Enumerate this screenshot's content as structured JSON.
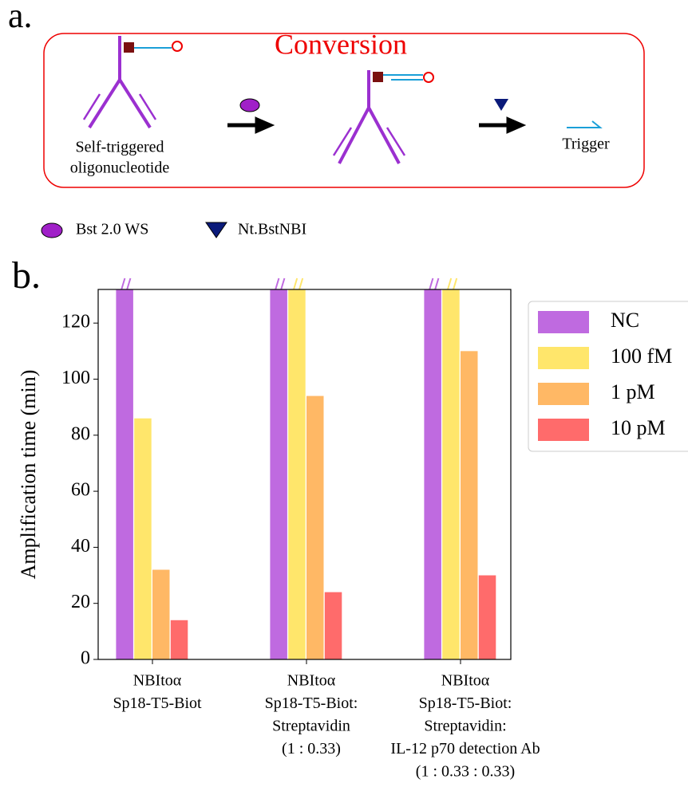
{
  "panels": {
    "a": "a.",
    "b": "b."
  },
  "diagram": {
    "title": "Conversion",
    "start_label": [
      "Self-triggered",
      "oligonucleotide"
    ],
    "end_label": "Trigger",
    "legend": [
      "Bst 2.0 WS",
      "Nt.BstNBI"
    ]
  },
  "chart_data": {
    "type": "bar",
    "categories": [
      [
        "NBItoα",
        "Sp18-T5-Biot"
      ],
      [
        "NBItoα",
        "Sp18-T5-Biot:",
        "Streptavidin",
        "(1 : 0.33)"
      ],
      [
        "NBItoα",
        "Sp18-T5-Biot:",
        "Streptavidin:",
        "IL-12 p70 detection Ab",
        "(1 : 0.33 : 0.33)"
      ]
    ],
    "series": [
      {
        "name": "NC",
        "color": "#bf6ae0",
        "values": [
          132,
          132,
          132
        ]
      },
      {
        "name": "100 fM",
        "color": "#ffe66b",
        "values": [
          86,
          132,
          132
        ]
      },
      {
        "name": "1 pM",
        "color": "#ffb865",
        "values": [
          32,
          94,
          110
        ]
      },
      {
        "name": "10 pM",
        "color": "#ff6b6b",
        "values": [
          14,
          24,
          30
        ]
      }
    ],
    "y_label": "Amplification time (min)",
    "ylim": [
      0,
      132
    ],
    "yticks": [
      0,
      20,
      40,
      60,
      80,
      100,
      120
    ],
    "legend": "upper right"
  }
}
